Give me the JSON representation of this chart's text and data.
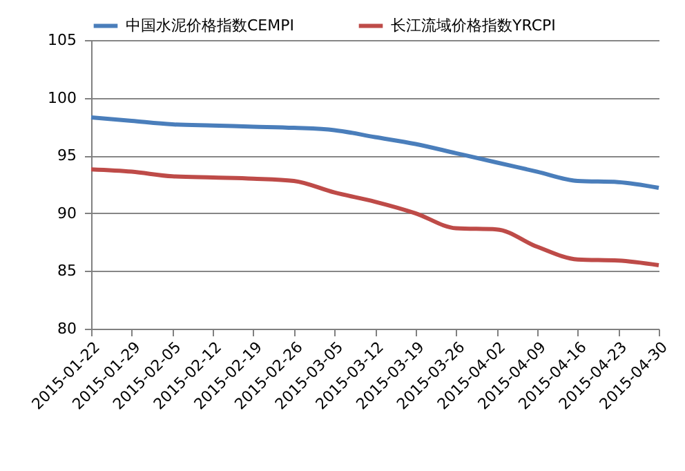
{
  "chart_data": {
    "type": "line",
    "categories": [
      "2015-01-22",
      "2015-01-29",
      "2015-02-05",
      "2015-02-12",
      "2015-02-19",
      "2015-02-26",
      "2015-03-05",
      "2015-03-12",
      "2015-03-19",
      "2015-03-26",
      "2015-04-02",
      "2015-04-09",
      "2015-04-16",
      "2015-04-23",
      "2015-04-30"
    ],
    "series": [
      {
        "name": "中国水泥价格指数CEMPI",
        "color": "#4a7ebb",
        "values": [
          98.3,
          98.0,
          97.7,
          97.6,
          97.5,
          97.4,
          97.2,
          96.6,
          96.0,
          95.2,
          94.4,
          93.6,
          92.8,
          92.7,
          92.2
        ]
      },
      {
        "name": "长江流域价格指数YRCPI",
        "color": "#be4b48",
        "values": [
          93.8,
          93.6,
          93.2,
          93.1,
          93.0,
          92.8,
          91.8,
          91.0,
          90.0,
          88.7,
          88.6,
          87.1,
          86.0,
          85.9,
          85.5
        ]
      }
    ],
    "ylim": [
      80,
      105
    ],
    "yticks": [
      80,
      85,
      90,
      95,
      100,
      105
    ],
    "grid": "y",
    "legend": "top",
    "marker": "none",
    "line_style": "solid"
  }
}
